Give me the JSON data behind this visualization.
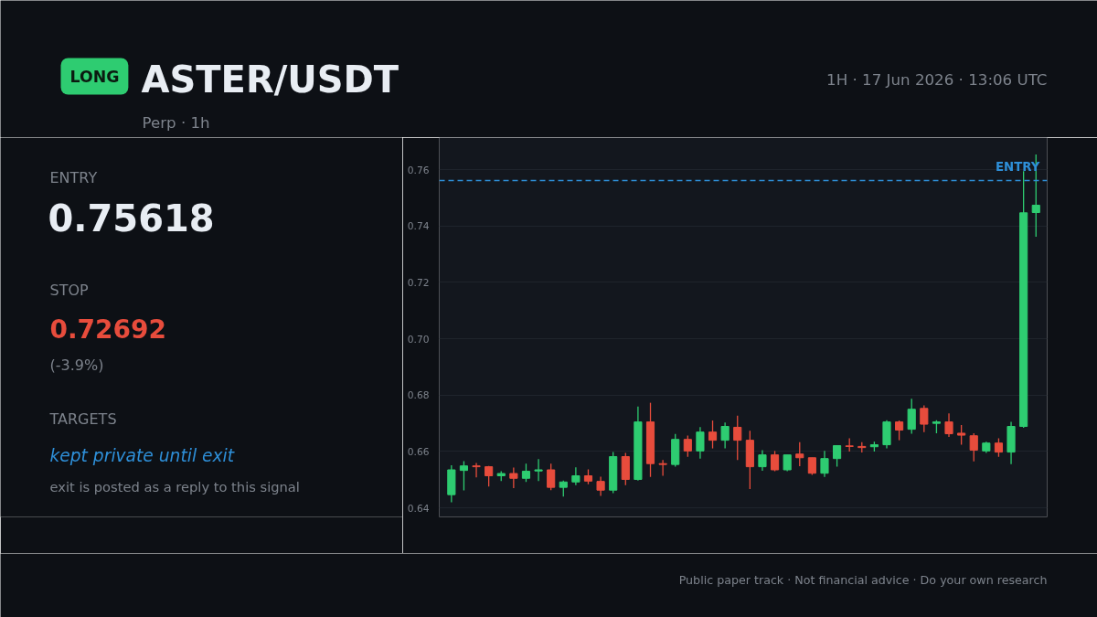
{
  "chart_data": {
    "type": "candlestick",
    "title": "ASTER/USDT",
    "subtitle": "Perp · 1h",
    "annotations": [
      "LONG",
      "1H · 17 Jun 2026 · 13:06 UTC",
      "ENTRY",
      "0.75618",
      "STOP",
      "0.72692",
      "(-3.9%)",
      "TARGETS",
      "kept private until exit",
      "exit is posted as a reply to this signal",
      "Public paper track · Not financial advice · Do your own research"
    ],
    "categories": [
      null,
      null,
      null,
      null,
      null,
      null,
      null,
      null,
      null,
      null,
      null,
      null,
      null,
      null,
      null,
      null,
      null,
      null,
      null,
      null,
      null,
      null,
      null,
      null,
      null,
      null,
      null,
      null,
      null,
      null,
      null,
      null,
      null,
      null,
      null,
      null,
      null,
      null,
      null,
      null,
      null,
      null,
      null,
      null,
      null,
      null,
      null,
      null
    ],
    "ohlc": [
      [
        0.6447,
        0.6551,
        0.642,
        0.6535
      ],
      [
        0.6533,
        0.6566,
        0.6462,
        0.6549
      ],
      [
        0.6549,
        0.6559,
        0.6508,
        0.6546
      ],
      [
        0.6546,
        0.6549,
        0.6476,
        0.6514
      ],
      [
        0.6514,
        0.653,
        0.6495,
        0.6522
      ],
      [
        0.6522,
        0.6543,
        0.647,
        0.6505
      ],
      [
        0.6505,
        0.6557,
        0.6492,
        0.653
      ],
      [
        0.6531,
        0.6573,
        0.6495,
        0.6535
      ],
      [
        0.6535,
        0.6557,
        0.6463,
        0.6473
      ],
      [
        0.6473,
        0.6497,
        0.644,
        0.6492
      ],
      [
        0.6492,
        0.6544,
        0.6481,
        0.6514
      ],
      [
        0.6514,
        0.6537,
        0.6484,
        0.6495
      ],
      [
        0.6494,
        0.6511,
        0.6443,
        0.6463
      ],
      [
        0.6463,
        0.6598,
        0.6452,
        0.6582
      ],
      [
        0.6582,
        0.6595,
        0.6481,
        0.6501
      ],
      [
        0.6501,
        0.676,
        0.6497,
        0.6705
      ],
      [
        0.6705,
        0.6773,
        0.651,
        0.6557
      ],
      [
        0.6557,
        0.657,
        0.6514,
        0.6554
      ],
      [
        0.6554,
        0.6662,
        0.6546,
        0.6643
      ],
      [
        0.6643,
        0.6657,
        0.6581,
        0.6602
      ],
      [
        0.6602,
        0.6687,
        0.6575,
        0.6669
      ],
      [
        0.6669,
        0.671,
        0.6611,
        0.664
      ],
      [
        0.664,
        0.6703,
        0.6611,
        0.6689
      ],
      [
        0.6686,
        0.6727,
        0.657,
        0.664
      ],
      [
        0.664,
        0.6674,
        0.6467,
        0.6546
      ],
      [
        0.6546,
        0.6605,
        0.6532,
        0.6588
      ],
      [
        0.6588,
        0.6602,
        0.653,
        0.6535
      ],
      [
        0.6535,
        0.6588,
        0.653,
        0.6588
      ],
      [
        0.6591,
        0.6633,
        0.6548,
        0.6578
      ],
      [
        0.6578,
        0.6578,
        0.6517,
        0.6523
      ],
      [
        0.6523,
        0.6602,
        0.651,
        0.6575
      ],
      [
        0.6575,
        0.6621,
        0.6546,
        0.6621
      ],
      [
        0.662,
        0.6647,
        0.66,
        0.6618
      ],
      [
        0.6618,
        0.6633,
        0.6597,
        0.6614
      ],
      [
        0.6617,
        0.6635,
        0.66,
        0.6624
      ],
      [
        0.6624,
        0.6711,
        0.6611,
        0.6705
      ],
      [
        0.6705,
        0.671,
        0.664,
        0.6676
      ],
      [
        0.6679,
        0.6787,
        0.6663,
        0.675
      ],
      [
        0.6753,
        0.6764,
        0.6669,
        0.6697
      ],
      [
        0.67,
        0.6711,
        0.6665,
        0.6705
      ],
      [
        0.6705,
        0.6735,
        0.6652,
        0.6663
      ],
      [
        0.6665,
        0.6694,
        0.6624,
        0.6658
      ],
      [
        0.6656,
        0.6665,
        0.6565,
        0.6605
      ],
      [
        0.6602,
        0.6635,
        0.6595,
        0.663
      ],
      [
        0.663,
        0.6647,
        0.6581,
        0.6598
      ],
      [
        0.6598,
        0.6705,
        0.6555,
        0.6689
      ],
      [
        0.6689,
        0.7595,
        0.6684,
        0.7447
      ],
      [
        0.7448,
        0.7654,
        0.7362,
        0.7474
      ]
    ],
    "colors": [
      "#2ecc71",
      "#2ecc71",
      "#e74c3c",
      "#e74c3c",
      "#2ecc71",
      "#e74c3c",
      "#2ecc71",
      "#2ecc71",
      "#e74c3c",
      "#2ecc71",
      "#2ecc71",
      "#e74c3c",
      "#e74c3c",
      "#2ecc71",
      "#e74c3c",
      "#2ecc71",
      "#e74c3c",
      "#e74c3c",
      "#2ecc71",
      "#e74c3c",
      "#2ecc71",
      "#e74c3c",
      "#2ecc71",
      "#e74c3c",
      "#e74c3c",
      "#2ecc71",
      "#e74c3c",
      "#2ecc71",
      "#e74c3c",
      "#e74c3c",
      "#2ecc71",
      "#2ecc71",
      "#e74c3c",
      "#e74c3c",
      "#2ecc71",
      "#2ecc71",
      "#e74c3c",
      "#2ecc71",
      "#e74c3c",
      "#2ecc71",
      "#e74c3c",
      "#e74c3c",
      "#e74c3c",
      "#2ecc71",
      "#e74c3c",
      "#2ecc71",
      "#2ecc71",
      "#2ecc71"
    ],
    "ylim": [
      0.6368,
      0.7714
    ],
    "yticks": [
      {
        "value": 0.64,
        "label": "0.64"
      },
      {
        "value": 0.66,
        "label": "0.66"
      },
      {
        "value": 0.68,
        "label": "0.68"
      },
      {
        "value": 0.7,
        "label": "0.70"
      },
      {
        "value": 0.72,
        "label": "0.72"
      },
      {
        "value": 0.74,
        "label": "0.74"
      },
      {
        "value": 0.76,
        "label": "0.76"
      }
    ],
    "grid": "y",
    "ref_lines": [
      {
        "axis": "y",
        "value": 0.75618,
        "label": "ENTRY",
        "color": "#2e8fd8",
        "line_style": "dashed"
      }
    ]
  }
}
